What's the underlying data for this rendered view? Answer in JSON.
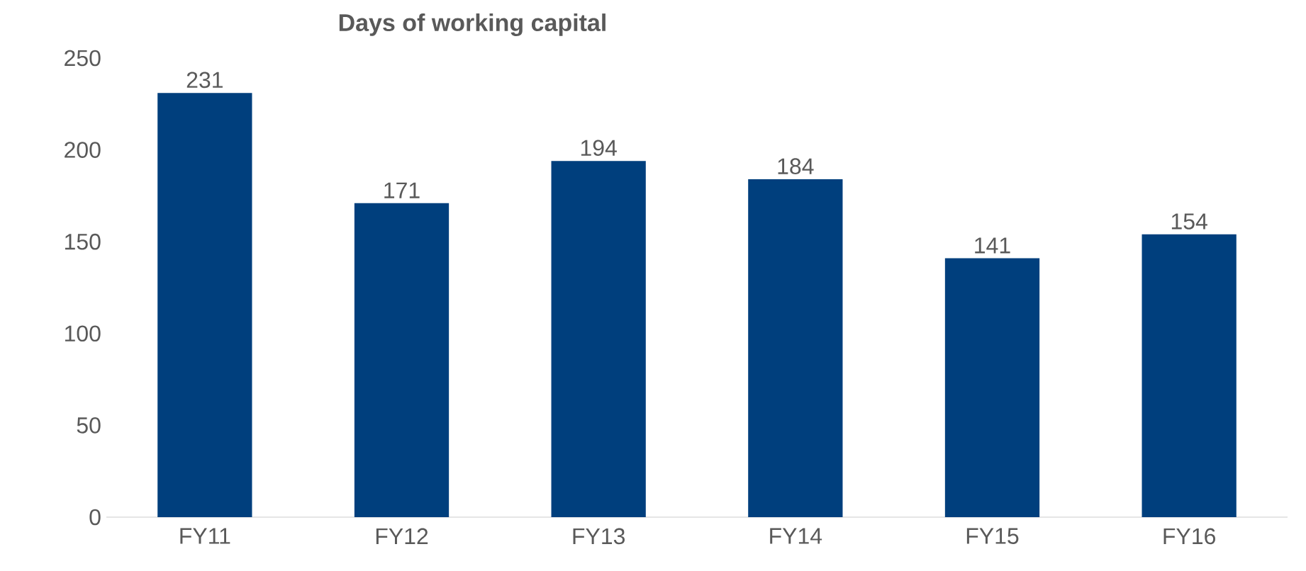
{
  "chart_data": {
    "type": "bar",
    "title": "Days of working capital",
    "categories": [
      "FY11",
      "FY12",
      "FY13",
      "FY14",
      "FY15",
      "FY16"
    ],
    "values": [
      231,
      171,
      194,
      184,
      141,
      154
    ],
    "color": "#003f7d",
    "ylim": [
      0,
      250
    ],
    "yticks": [
      0,
      50,
      100,
      150,
      200,
      250
    ],
    "grid": false,
    "data_labels": true
  }
}
